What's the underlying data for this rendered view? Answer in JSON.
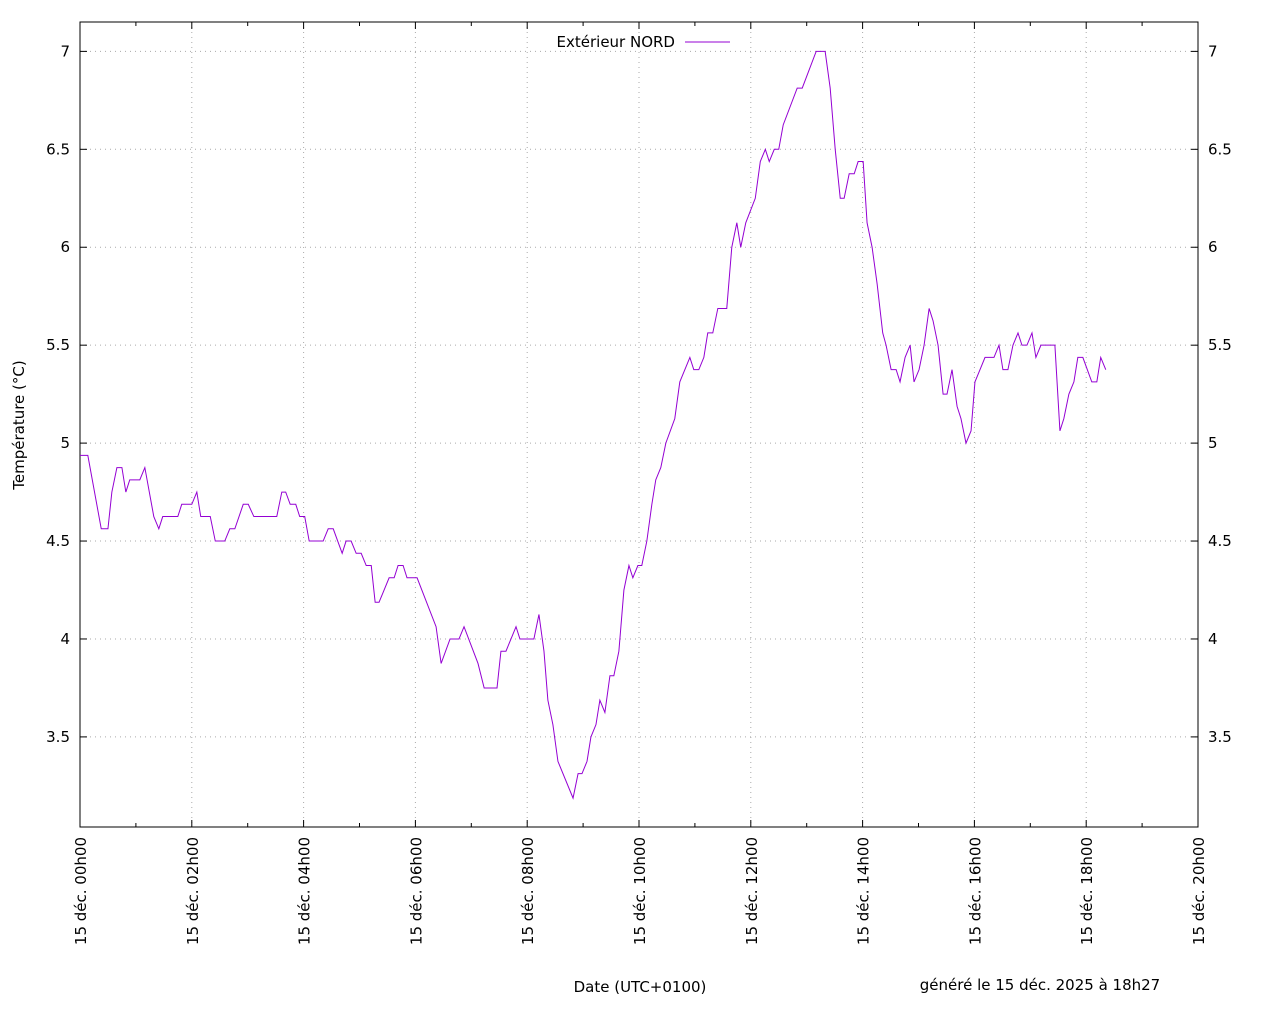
{
  "chart_data": {
    "type": "line",
    "x_label": "Date (UTC+0100)",
    "y_label": "Température (°C)",
    "annotation": "généré le 15 déc. 2025 à 18h27",
    "legend": "top center",
    "grid": true,
    "mirror_y_axis": true,
    "xlim": [
      0,
      20
    ],
    "xticks": [
      {
        "value": 0,
        "label": "15 déc. 00h00"
      },
      {
        "value": 2,
        "label": "15 déc. 02h00"
      },
      {
        "value": 4,
        "label": "15 déc. 04h00"
      },
      {
        "value": 6,
        "label": "15 déc. 06h00"
      },
      {
        "value": 8,
        "label": "15 déc. 08h00"
      },
      {
        "value": 10,
        "label": "15 déc. 10h00"
      },
      {
        "value": 12,
        "label": "15 déc. 12h00"
      },
      {
        "value": 14,
        "label": "15 déc. 14h00"
      },
      {
        "value": 16,
        "label": "15 déc. 16h00"
      },
      {
        "value": 18,
        "label": "15 déc. 18h00"
      },
      {
        "value": 20,
        "label": "15 déc. 20h00"
      }
    ],
    "ylim": [
      3.04,
      7.15
    ],
    "yticks": [
      3.5,
      4,
      4.5,
      5,
      5.5,
      6,
      6.5,
      7
    ],
    "x": [
      0,
      0.14,
      0.38,
      0.5,
      0.57,
      0.66,
      0.75,
      0.82,
      0.89,
      1.07,
      1.16,
      1.32,
      1.41,
      1.48,
      1.75,
      1.82,
      2.0,
      2.09,
      2.16,
      2.33,
      2.42,
      2.59,
      2.68,
      2.77,
      2.92,
      3.01,
      3.11,
      3.52,
      3.61,
      3.68,
      3.76,
      3.86,
      3.93,
      4.02,
      4.1,
      4.35,
      4.44,
      4.53,
      4.69,
      4.76,
      4.85,
      4.94,
      5.03,
      5.12,
      5.21,
      5.28,
      5.35,
      5.53,
      5.62,
      5.69,
      5.78,
      5.85,
      6.03,
      6.37,
      6.46,
      6.62,
      6.78,
      6.87,
      7.12,
      7.23,
      7.46,
      7.53,
      7.62,
      7.8,
      7.87,
      8.12,
      8.21,
      8.3,
      8.37,
      8.46,
      8.55,
      8.82,
      8.91,
      8.98,
      9.07,
      9.14,
      9.23,
      9.3,
      9.39,
      9.48,
      9.55,
      9.64,
      9.73,
      9.82,
      9.89,
      9.98,
      10.05,
      10.14,
      10.23,
      10.3,
      10.39,
      10.48,
      10.64,
      10.73,
      10.91,
      10.98,
      11.07,
      11.16,
      11.23,
      11.32,
      11.41,
      11.57,
      11.66,
      11.75,
      11.82,
      11.91,
      12.08,
      12.17,
      12.26,
      12.33,
      12.42,
      12.5,
      12.58,
      12.83,
      12.92,
      13.17,
      13.33,
      13.42,
      13.51,
      13.6,
      13.67,
      13.76,
      13.85,
      13.92,
      14.01,
      14.08,
      14.17,
      14.26,
      14.36,
      14.42,
      14.51,
      14.6,
      14.67,
      14.76,
      14.85,
      14.92,
      15.01,
      15.1,
      15.19,
      15.26,
      15.35,
      15.44,
      15.51,
      15.6,
      15.69,
      15.76,
      15.85,
      15.94,
      16.01,
      16.1,
      16.19,
      16.35,
      16.44,
      16.51,
      16.6,
      16.69,
      16.78,
      16.85,
      16.94,
      17.03,
      17.1,
      17.19,
      17.44,
      17.53,
      17.6,
      17.69,
      17.78,
      17.85,
      17.94,
      18.1,
      18.19,
      18.26,
      18.35
    ],
    "series": [
      {
        "name": "Extérieur NORD",
        "color": "#9400d3",
        "values": [
          4.9375,
          4.9375,
          4.5625,
          4.5625,
          4.75,
          4.875,
          4.875,
          4.75,
          4.8125,
          4.8125,
          4.875,
          4.625,
          4.5625,
          4.625,
          4.625,
          4.6875,
          4.6875,
          4.75,
          4.625,
          4.625,
          4.5,
          4.5,
          4.5625,
          4.5625,
          4.6875,
          4.6875,
          4.625,
          4.625,
          4.75,
          4.75,
          4.6875,
          4.6875,
          4.625,
          4.625,
          4.5,
          4.5,
          4.5625,
          4.5625,
          4.4375,
          4.5,
          4.5,
          4.4375,
          4.4375,
          4.375,
          4.375,
          4.1875,
          4.1875,
          4.3125,
          4.3125,
          4.375,
          4.375,
          4.3125,
          4.3125,
          4.0625,
          3.875,
          4.0,
          4.0,
          4.0625,
          3.875,
          3.75,
          3.75,
          3.9375,
          3.9375,
          4.0625,
          4.0,
          4.0,
          4.125,
          3.9375,
          3.6875,
          3.5625,
          3.375,
          3.1875,
          3.3125,
          3.3125,
          3.375,
          3.5,
          3.5625,
          3.6875,
          3.625,
          3.8125,
          3.8125,
          3.9375,
          4.25,
          4.375,
          4.3125,
          4.375,
          4.375,
          4.5,
          4.6875,
          4.8125,
          4.875,
          5.0,
          5.125,
          5.3125,
          5.4375,
          5.375,
          5.375,
          5.4375,
          5.5625,
          5.5625,
          5.6875,
          5.6875,
          6.0,
          6.125,
          6.0,
          6.125,
          6.25,
          6.4375,
          6.5,
          6.4375,
          6.5,
          6.5,
          6.625,
          6.8125,
          6.8125,
          7.0,
          7.0,
          6.8125,
          6.5,
          6.25,
          6.25,
          6.375,
          6.375,
          6.4375,
          6.4375,
          6.125,
          6.0,
          5.8125,
          5.5625,
          5.5,
          5.375,
          5.375,
          5.3125,
          5.4375,
          5.5,
          5.3125,
          5.375,
          5.5,
          5.6875,
          5.625,
          5.5,
          5.25,
          5.25,
          5.375,
          5.1875,
          5.125,
          5.0,
          5.0625,
          5.3125,
          5.375,
          5.4375,
          5.4375,
          5.5,
          5.375,
          5.375,
          5.5,
          5.5625,
          5.5,
          5.5,
          5.5625,
          5.4375,
          5.5,
          5.5,
          5.0625,
          5.125,
          5.25,
          5.3125,
          5.4375,
          5.4375,
          5.3125,
          5.3125,
          5.4375,
          5.375
        ]
      }
    ]
  }
}
